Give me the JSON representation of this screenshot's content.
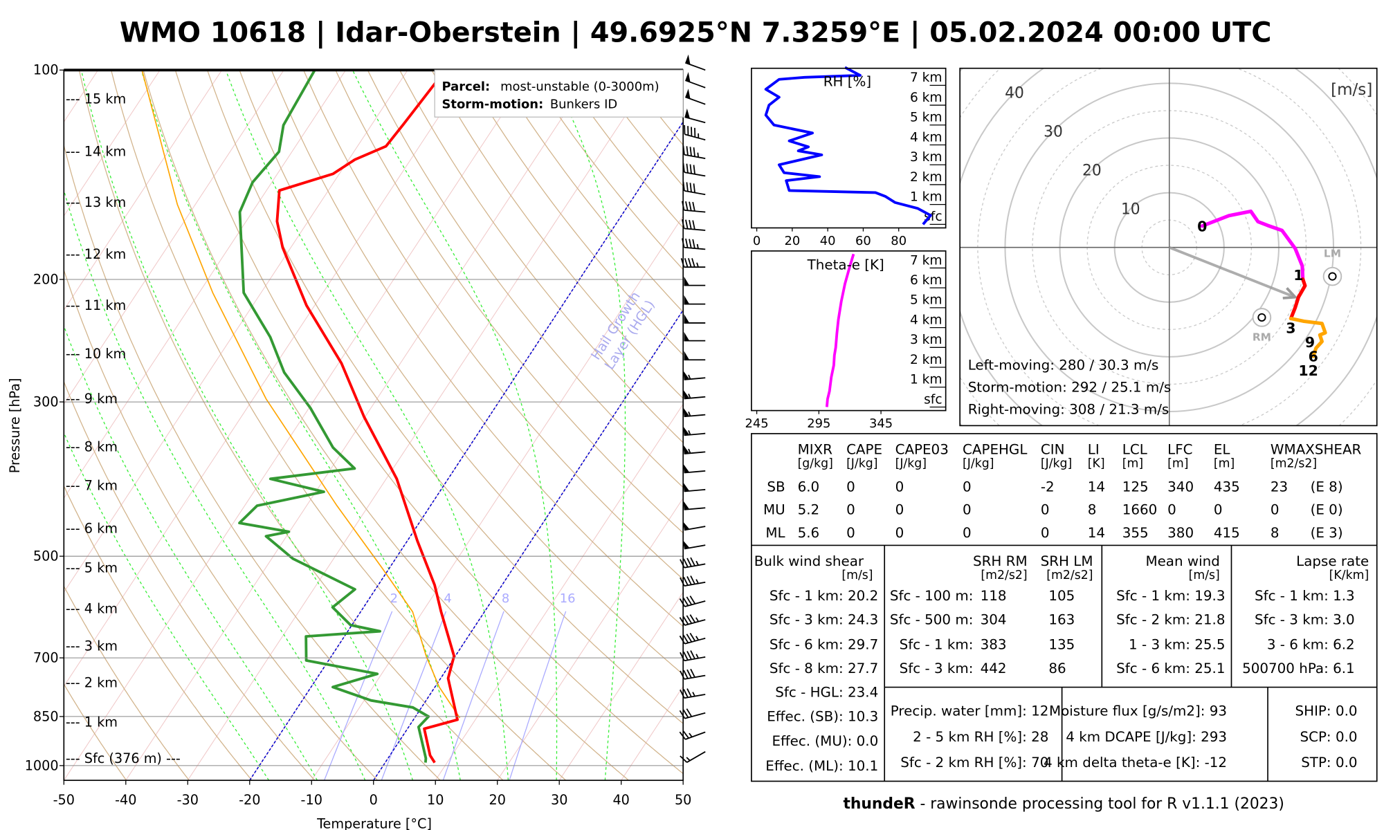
{
  "title": "WMO 10618 | Idar-Oberstein | 49.6925°N 7.3259°E | 05.02.2024 00:00 UTC",
  "colors": {
    "temperature": "#ff0000",
    "dewpoint": "#339933",
    "parcel": "#ffa500",
    "hgl": "#0000cc",
    "rh": "#0000ff",
    "theta_e": "#ff00ff"
  },
  "chart_data": [
    {
      "type": "line",
      "name": "skew-t",
      "xlabel": "Temperature [°C]",
      "ylabel": "Pressure [hPa]",
      "xlim": [
        -50,
        50
      ],
      "ylim": [
        1050,
        100
      ],
      "x_ticks": [
        "-50",
        "-40",
        "-30",
        "-20",
        "-10",
        "0",
        "10",
        "20",
        "30",
        "40",
        "50"
      ],
      "y_ticks": [
        "100",
        "200",
        "300",
        "500",
        "700",
        "850",
        "1000"
      ],
      "height_labels": [
        {
          "label": "--- 15 km",
          "p": 110
        },
        {
          "label": "--- 14 km",
          "p": 131
        },
        {
          "label": "--- 13 km",
          "p": 155
        },
        {
          "label": "--- 12 km",
          "p": 184
        },
        {
          "label": "--- 11 km",
          "p": 218
        },
        {
          "label": "--- 10 km",
          "p": 256
        },
        {
          "label": "--- 9 km",
          "p": 297
        },
        {
          "label": "--- 8 km",
          "p": 348
        },
        {
          "label": "--- 7 km",
          "p": 396
        },
        {
          "label": "--- 6 km",
          "p": 456
        },
        {
          "label": "--- 5 km",
          "p": 520
        },
        {
          "label": "--- 4 km",
          "p": 595
        },
        {
          "label": "--- 3 km",
          "p": 673
        },
        {
          "label": "--- 2 km",
          "p": 760
        },
        {
          "label": "--- 1 km",
          "p": 866
        },
        {
          "label": "--- Sfc (376 m) ---",
          "p": 977
        }
      ],
      "mixing_ratio_labels": [
        "2",
        "4",
        "8",
        "16"
      ],
      "hgl_isotherms": [
        -20,
        0
      ],
      "hgl_annotation": [
        "Hail Growth",
        "Layer (HGL)"
      ],
      "legend": {
        "parcel_label": "Parcel:",
        "parcel_value": "most-unstable (0-3000m)",
        "storm_label": "Storm-motion:",
        "storm_value": "Bunkers ID"
      },
      "series": [
        {
          "name": "temperature",
          "points": [
            [
              990,
              8.0
            ],
            [
              967,
              6.5
            ],
            [
              885,
              2.7
            ],
            [
              859,
              7.1
            ],
            [
              749,
              1.2
            ],
            [
              696,
              -0.2
            ],
            [
              601,
              -7.0
            ],
            [
              550,
              -10.9
            ],
            [
              475,
              -18.4
            ],
            [
              387,
              -28.3
            ],
            [
              315,
              -40.2
            ],
            [
              264,
              -49.5
            ],
            [
              218,
              -61.3
            ],
            [
              180,
              -71.3
            ],
            [
              165,
              -75.0
            ],
            [
              149,
              -77.9
            ],
            [
              141,
              -71.0
            ],
            [
              134.5,
              -69.0
            ],
            [
              128.7,
              -65.4
            ],
            [
              119.6,
              -64.9
            ],
            [
              100,
              -63.9
            ]
          ]
        },
        {
          "name": "dewpoint",
          "points": [
            [
              990,
              6.5
            ],
            [
              976,
              6.1
            ],
            [
              880,
              1.6
            ],
            [
              850,
              2.1
            ],
            [
              825,
              -1.4
            ],
            [
              806,
              -8.9
            ],
            [
              771,
              -16.5
            ],
            [
              738,
              -10.7
            ],
            [
              706,
              -23.6
            ],
            [
              652,
              -26.2
            ],
            [
              641,
              -14.8
            ],
            [
              628,
              -20.2
            ],
            [
              592,
              -25.0
            ],
            [
              558,
              -23.3
            ],
            [
              504,
              -36.6
            ],
            [
              468,
              -43.3
            ],
            [
              461,
              -40.1
            ],
            [
              448,
              -49.0
            ],
            [
              423,
              -48.0
            ],
            [
              404,
              -38.7
            ],
            [
              387,
              -48.7
            ],
            [
              374,
              -36.2
            ],
            [
              349,
              -41.9
            ],
            [
              306,
              -49.8
            ],
            [
              272,
              -57.8
            ],
            [
              242,
              -63.8
            ],
            [
              209,
              -72.8
            ],
            [
              160,
              -82.0
            ],
            [
              145,
              -83.1
            ],
            [
              131,
              -82.1
            ],
            [
              120,
              -84.2
            ],
            [
              100,
              -85.0
            ]
          ]
        },
        {
          "name": "parcel",
          "points": [
            [
              854,
              7.3
            ],
            [
              771,
              0.7
            ],
            [
              696,
              -4.7
            ],
            [
              601,
              -11.6
            ],
            [
              519,
              -21.3
            ],
            [
              423,
              -35.1
            ],
            [
              297,
              -57.9
            ],
            [
              209,
              -77.8
            ],
            [
              156,
              -92.9
            ],
            [
              100,
              -112.9
            ]
          ]
        }
      ],
      "winds_kt": [
        [
          100,
          290,
          50
        ],
        [
          106,
          290,
          50
        ],
        [
          112,
          290,
          50
        ],
        [
          119,
          285,
          50
        ],
        [
          126,
          285,
          45
        ],
        [
          134,
          280,
          45
        ],
        [
          142,
          280,
          40
        ],
        [
          151,
          280,
          40
        ],
        [
          160,
          275,
          40
        ],
        [
          170,
          275,
          40
        ],
        [
          181,
          275,
          45
        ],
        [
          192,
          270,
          45
        ],
        [
          204,
          270,
          50
        ],
        [
          217,
          270,
          50
        ],
        [
          231,
          270,
          50
        ],
        [
          245,
          270,
          50
        ],
        [
          261,
          270,
          50
        ],
        [
          277,
          265,
          55
        ],
        [
          295,
          265,
          55
        ],
        [
          313,
          265,
          55
        ],
        [
          333,
          265,
          55
        ],
        [
          354,
          265,
          55
        ],
        [
          377,
          265,
          50
        ],
        [
          401,
          265,
          50
        ],
        [
          426,
          265,
          50
        ],
        [
          453,
          260,
          50
        ],
        [
          482,
          260,
          50
        ],
        [
          513,
          260,
          45
        ],
        [
          545,
          260,
          45
        ],
        [
          580,
          255,
          40
        ],
        [
          617,
          255,
          45
        ],
        [
          656,
          255,
          45
        ],
        [
          698,
          260,
          45
        ],
        [
          742,
          260,
          40
        ],
        [
          790,
          260,
          35
        ],
        [
          840,
          255,
          30
        ],
        [
          895,
          250,
          25
        ],
        [
          955,
          240,
          15
        ]
      ]
    },
    {
      "type": "line",
      "name": "rh-profile",
      "title": "RH [%]",
      "xlim": [
        0,
        100
      ],
      "x_ticks": [
        "0",
        "20",
        "40",
        "60",
        "80"
      ],
      "y_ticks": [
        "sfc",
        "1 km",
        "2 km",
        "3 km",
        "4 km",
        "5 km",
        "6 km",
        "7 km"
      ],
      "points": [
        [
          0,
          93.7
        ],
        [
          0.45,
          98
        ],
        [
          0.8,
          90.8
        ],
        [
          1.1,
          78
        ],
        [
          1.4,
          72.6
        ],
        [
          1.6,
          66.9
        ],
        [
          1.7,
          18.3
        ],
        [
          2.2,
          16.6
        ],
        [
          2.4,
          35.4
        ],
        [
          2.6,
          15.4
        ],
        [
          3.0,
          12.6
        ],
        [
          3.5,
          36.6
        ],
        [
          3.7,
          23.4
        ],
        [
          3.9,
          29.1
        ],
        [
          4.2,
          18.3
        ],
        [
          4.6,
          31.4
        ],
        [
          5.0,
          9.7
        ],
        [
          5.5,
          5.1
        ],
        [
          6.0,
          6.9
        ],
        [
          6.4,
          12.6
        ],
        [
          6.8,
          5.1
        ],
        [
          7.3,
          12.6
        ],
        [
          7.4,
          26.9
        ],
        [
          7.5,
          58.3
        ],
        [
          7.9,
          49.7
        ]
      ]
    },
    {
      "type": "line",
      "name": "theta-e-profile",
      "title": "Theta-e [K]",
      "xlim": [
        245,
        370
      ],
      "x_ticks": [
        "245",
        "295",
        "345"
      ],
      "y_ticks": [
        "sfc",
        "1 km",
        "2 km",
        "3 km",
        "4 km",
        "5 km",
        "6 km",
        "7 km"
      ],
      "points": [
        [
          0,
          301.4
        ],
        [
          0.4,
          302
        ],
        [
          0.8,
          303.6
        ],
        [
          1.5,
          305
        ],
        [
          2.1,
          307
        ],
        [
          2.6,
          307.5
        ],
        [
          3.0,
          308.6
        ],
        [
          3.7,
          309.5
        ],
        [
          4.4,
          310.7
        ],
        [
          5.3,
          313
        ],
        [
          6.2,
          316
        ],
        [
          7.1,
          320
        ],
        [
          7.7,
          322.9
        ]
      ]
    },
    {
      "type": "line",
      "name": "hodograph",
      "unit_label": "[m/s]",
      "ring_labels": [
        "10",
        "20",
        "30",
        "40"
      ],
      "segments": [
        {
          "layer": "0-1 km",
          "color": "#ff00ff",
          "points": [
            [
              6.0,
              3.9
            ],
            [
              10.9,
              5.8
            ],
            [
              14.9,
              6.6
            ],
            [
              16.2,
              4.7
            ],
            [
              18.0,
              4.0
            ],
            [
              20.6,
              3.1
            ],
            [
              23.0,
              -0.2
            ],
            [
              24.3,
              -3.4
            ],
            [
              24.4,
              -5.8
            ]
          ]
        },
        {
          "layer": "1-3 km",
          "color": "#ff0000",
          "points": [
            [
              24.4,
              -5.8
            ],
            [
              24.8,
              -7.0
            ],
            [
              23.6,
              -9.1
            ],
            [
              23.0,
              -11.0
            ],
            [
              22.2,
              -13.0
            ]
          ]
        },
        {
          "layer": "3-12 km",
          "color": "#ffa500",
          "points": [
            [
              22.2,
              -13.0
            ],
            [
              24.6,
              -13.5
            ],
            [
              27.9,
              -13.9
            ],
            [
              28.5,
              -15.6
            ],
            [
              27.5,
              -16.0
            ],
            [
              27.9,
              -17.2
            ],
            [
              26.8,
              -18.4
            ],
            [
              26.3,
              -19.9
            ]
          ]
        }
      ],
      "height_labels": [
        {
          "label": "0",
          "u": 6.0,
          "v": 3.9
        },
        {
          "label": "1",
          "u": 23.6,
          "v": -5.0
        },
        {
          "label": "3",
          "u": 22.2,
          "v": -14.7
        },
        {
          "label": "9",
          "u": 25.7,
          "v": -16.1
        },
        {
          "label": "6",
          "u": 26.3,
          "v": -17.9
        },
        {
          "label": "12",
          "u": 25.4,
          "v": -19.3
        }
      ],
      "storm_motion": {
        "u": 23.0,
        "v": -9.1
      },
      "right_mover": {
        "label": "RM",
        "u": 16.9,
        "v": -12.8
      },
      "left_mover": {
        "label": "LM",
        "u": 29.8,
        "v": -5.3
      },
      "info": [
        "Left-moving: 280 / 30.3 m/s",
        "Storm-motion: 292 / 25.1 m/s",
        "Right-moving: 308 / 21.3 m/s"
      ]
    }
  ],
  "table": {
    "indices": {
      "columns": [
        {
          "name": "MIXR",
          "unit": "[g/kg]"
        },
        {
          "name": "CAPE",
          "unit": "[J/kg]"
        },
        {
          "name": "CAPE03",
          "unit": "[J/kg]"
        },
        {
          "name": "CAPEHGL",
          "unit": "[J/kg]"
        },
        {
          "name": "CIN",
          "unit": "[J/kg]"
        },
        {
          "name": "LI",
          "unit": "[K]"
        },
        {
          "name": "LCL",
          "unit": "[m]"
        },
        {
          "name": "LFC",
          "unit": "[m]"
        },
        {
          "name": "EL",
          "unit": "[m]"
        },
        {
          "name": "WMAXSHEAR",
          "unit": "[m2/s2]"
        }
      ],
      "rows": [
        {
          "label": "SB",
          "values": [
            "6.0",
            "0",
            "0",
            "0",
            "-2",
            "14",
            "125",
            "340",
            "435",
            "23",
            "(E 8)"
          ]
        },
        {
          "label": "MU",
          "values": [
            "5.2",
            "0",
            "0",
            "0",
            "0",
            "8",
            "1660",
            "0",
            "0",
            "0",
            "(E 0)"
          ]
        },
        {
          "label": "ML",
          "values": [
            "5.6",
            "0",
            "0",
            "0",
            "0",
            "14",
            "355",
            "380",
            "415",
            "8",
            "(E 3)"
          ]
        }
      ]
    },
    "bulk_shear": {
      "title": "Bulk wind shear",
      "unit": "[m/s]",
      "rows": [
        {
          "label": "Sfc - 1 km:",
          "value": "20.2"
        },
        {
          "label": "Sfc - 3 km:",
          "value": "24.3"
        },
        {
          "label": "Sfc - 6 km:",
          "value": "29.7"
        },
        {
          "label": "Sfc - 8 km:",
          "value": "27.7"
        },
        {
          "label": "Sfc - HGL:",
          "value": "23.4"
        },
        {
          "label": "Effec. (SB):",
          "value": "10.3"
        },
        {
          "label": "Effec. (MU):",
          "value": "0.0"
        },
        {
          "label": "Effec. (ML):",
          "value": "10.1"
        }
      ]
    },
    "srh": {
      "title_rm": "SRH RM",
      "title_lm": "SRH LM",
      "unit_rm": "[m2/s2]",
      "unit_lm": "[m2/s2]",
      "rows": [
        {
          "label": "Sfc - 100 m:",
          "rm": "118",
          "lm": "105"
        },
        {
          "label": "Sfc - 500 m:",
          "rm": "304",
          "lm": "163"
        },
        {
          "label": "Sfc - 1 km:",
          "rm": "383",
          "lm": "135"
        },
        {
          "label": "Sfc - 3 km:",
          "rm": "442",
          "lm": "86"
        }
      ]
    },
    "mean_wind": {
      "title": "Mean wind",
      "unit": "[m/s]",
      "rows": [
        {
          "label": "Sfc - 1 km:",
          "value": "19.3"
        },
        {
          "label": "Sfc - 2 km:",
          "value": "21.8"
        },
        {
          "label": "1 - 3 km:",
          "value": "25.5"
        },
        {
          "label": "Sfc - 6 km:",
          "value": "25.1"
        }
      ]
    },
    "lapse_rate": {
      "title": "Lapse rate",
      "unit": "[K/km]",
      "rows": [
        {
          "label": "Sfc - 1 km:",
          "value": "1.3"
        },
        {
          "label": "Sfc - 3 km:",
          "value": "3.0"
        },
        {
          "label": "3 - 6 km:",
          "value": "6.2"
        },
        {
          "label": "500700 hPa:",
          "value": "6.1"
        }
      ]
    },
    "moisture": {
      "rows": [
        {
          "label": "Precip. water [mm]:",
          "value": "12"
        },
        {
          "label": "2 - 5 km RH [%]:",
          "value": "28"
        },
        {
          "label": "Sfc - 2 km RH [%]:",
          "value": "70"
        }
      ]
    },
    "other": {
      "rows": [
        {
          "label": "Moisture flux [g/s/m2]:",
          "value": "93"
        },
        {
          "label": "4 km DCAPE [J/kg]:",
          "value": "293"
        },
        {
          "label": "4 km delta theta-e [K]:",
          "value": "-12"
        }
      ]
    },
    "composite": {
      "rows": [
        {
          "label": "SHIP:",
          "value": "0.0"
        },
        {
          "label": "SCP:",
          "value": "0.0"
        },
        {
          "label": "STP:",
          "value": "0.0"
        }
      ]
    }
  },
  "footer": {
    "brand": "thundeR",
    "text": " - rawinsonde processing tool for R v1.1.1 (2023)"
  }
}
